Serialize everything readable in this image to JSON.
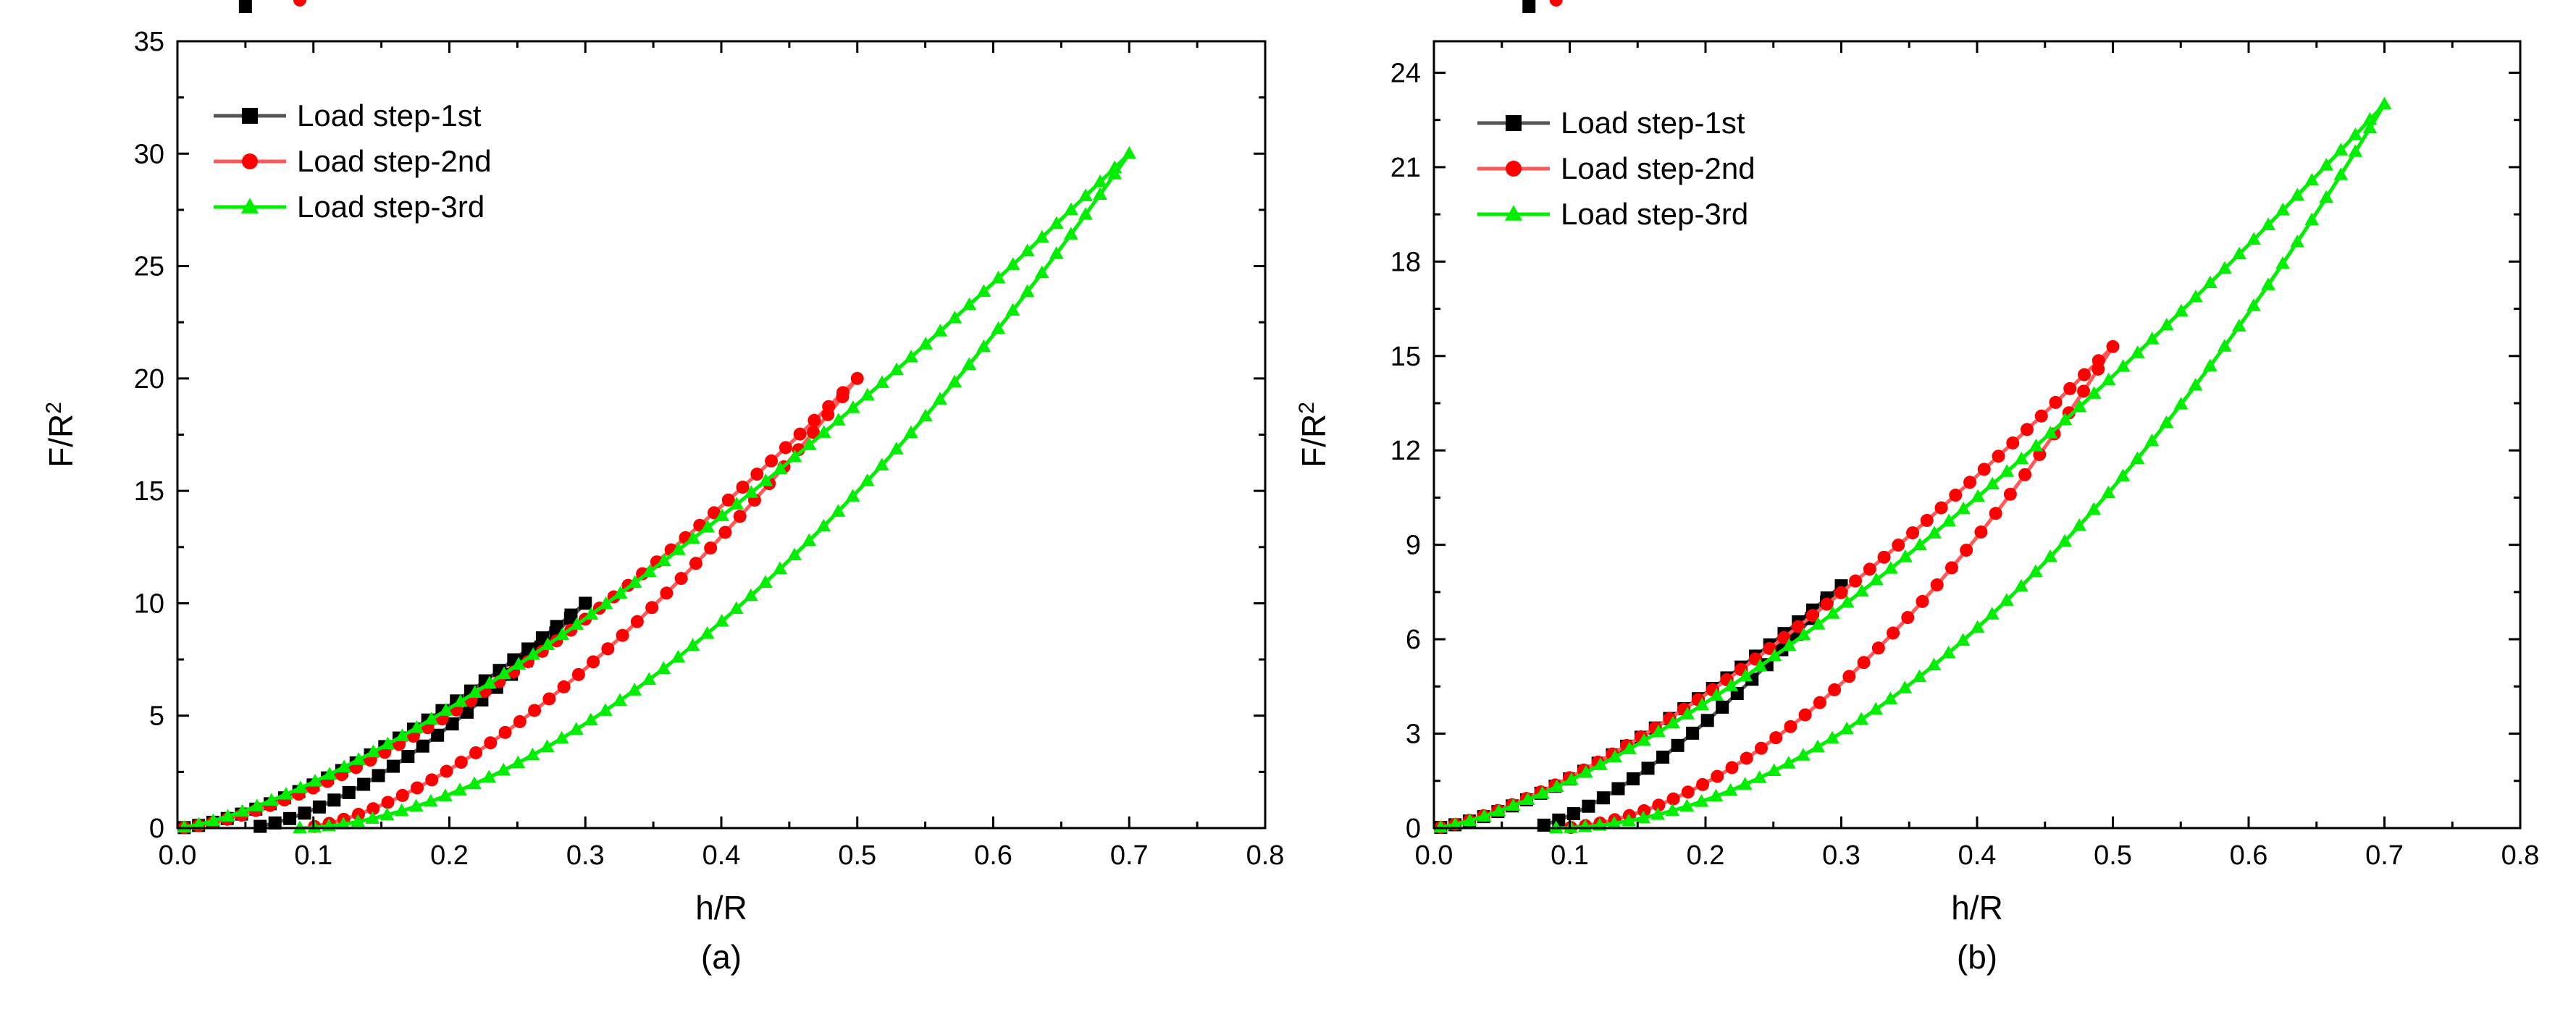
{
  "chart_data": [
    {
      "panel": "(a)",
      "type": "line",
      "xlabel": "h/R",
      "ylabel": "F/R",
      "ylabel_sup": "2",
      "xlim": [
        0,
        0.8
      ],
      "ylim": [
        0,
        35
      ],
      "xticks": [
        "0.0",
        "0.1",
        "0.2",
        "0.3",
        "0.4",
        "0.5",
        "0.6",
        "0.7",
        "0.8"
      ],
      "yticks": [
        "0",
        "5",
        "10",
        "15",
        "20",
        "25",
        "30",
        "35"
      ],
      "legend_position": "top-left",
      "grid": false,
      "series": [
        {
          "name": "Load step-1st",
          "color": "#000000",
          "line_color": "#555555",
          "marker": "square",
          "loading": {
            "h_max": 0.3,
            "F_max": 10.0,
            "exp": 1.5
          },
          "unloading": {
            "h_f": 0.05,
            "exp": 1.55
          }
        },
        {
          "name": "Load step-2nd",
          "color": "#ff0000",
          "line_color": "#ff5a5a",
          "marker": "circle",
          "loading": {
            "h_max": 0.5,
            "F_max": 20.0,
            "exp": 1.5
          },
          "unloading": {
            "h_f": 0.09,
            "exp": 1.55
          }
        },
        {
          "name": "Load step-3rd",
          "color": "#00ee00",
          "line_color": "#00ee00",
          "marker": "triangle",
          "loading": {
            "h_max": 0.7,
            "F_max": 30.0,
            "exp": 1.38
          },
          "unloading": {
            "h_f": 0.09,
            "exp": 1.75
          }
        }
      ]
    },
    {
      "panel": "(b)",
      "type": "line",
      "xlabel": "h/R",
      "ylabel": "F/R",
      "ylabel_sup": "2",
      "xlim": [
        0,
        0.8
      ],
      "ylim": [
        0,
        25
      ],
      "xticks": [
        "0.0",
        "0.1",
        "0.2",
        "0.3",
        "0.4",
        "0.5",
        "0.6",
        "0.7",
        "0.8"
      ],
      "yticks": [
        "0",
        "3",
        "6",
        "9",
        "12",
        "15",
        "18",
        "21",
        "24"
      ],
      "legend_position": "top-left",
      "grid": false,
      "series": [
        {
          "name": "Load step-1st",
          "color": "#000000",
          "line_color": "#555555",
          "marker": "square",
          "loading": {
            "h_max": 0.3,
            "F_max": 7.7,
            "exp": 1.45
          },
          "unloading": {
            "h_f": 0.07,
            "exp": 1.45
          }
        },
        {
          "name": "Load step-2nd",
          "color": "#ff0000",
          "line_color": "#ff5a5a",
          "marker": "circle",
          "loading": {
            "h_max": 0.5,
            "F_max": 15.3,
            "exp": 1.4
          },
          "unloading": {
            "h_f": 0.09,
            "exp": 1.8
          }
        },
        {
          "name": "Load step-3rd",
          "color": "#00ee00",
          "line_color": "#00ee00",
          "marker": "triangle",
          "loading": {
            "h_max": 0.7,
            "F_max": 23.0,
            "exp": 1.4
          },
          "unloading": {
            "h_f": 0.09,
            "exp": 1.9
          }
        }
      ]
    }
  ]
}
